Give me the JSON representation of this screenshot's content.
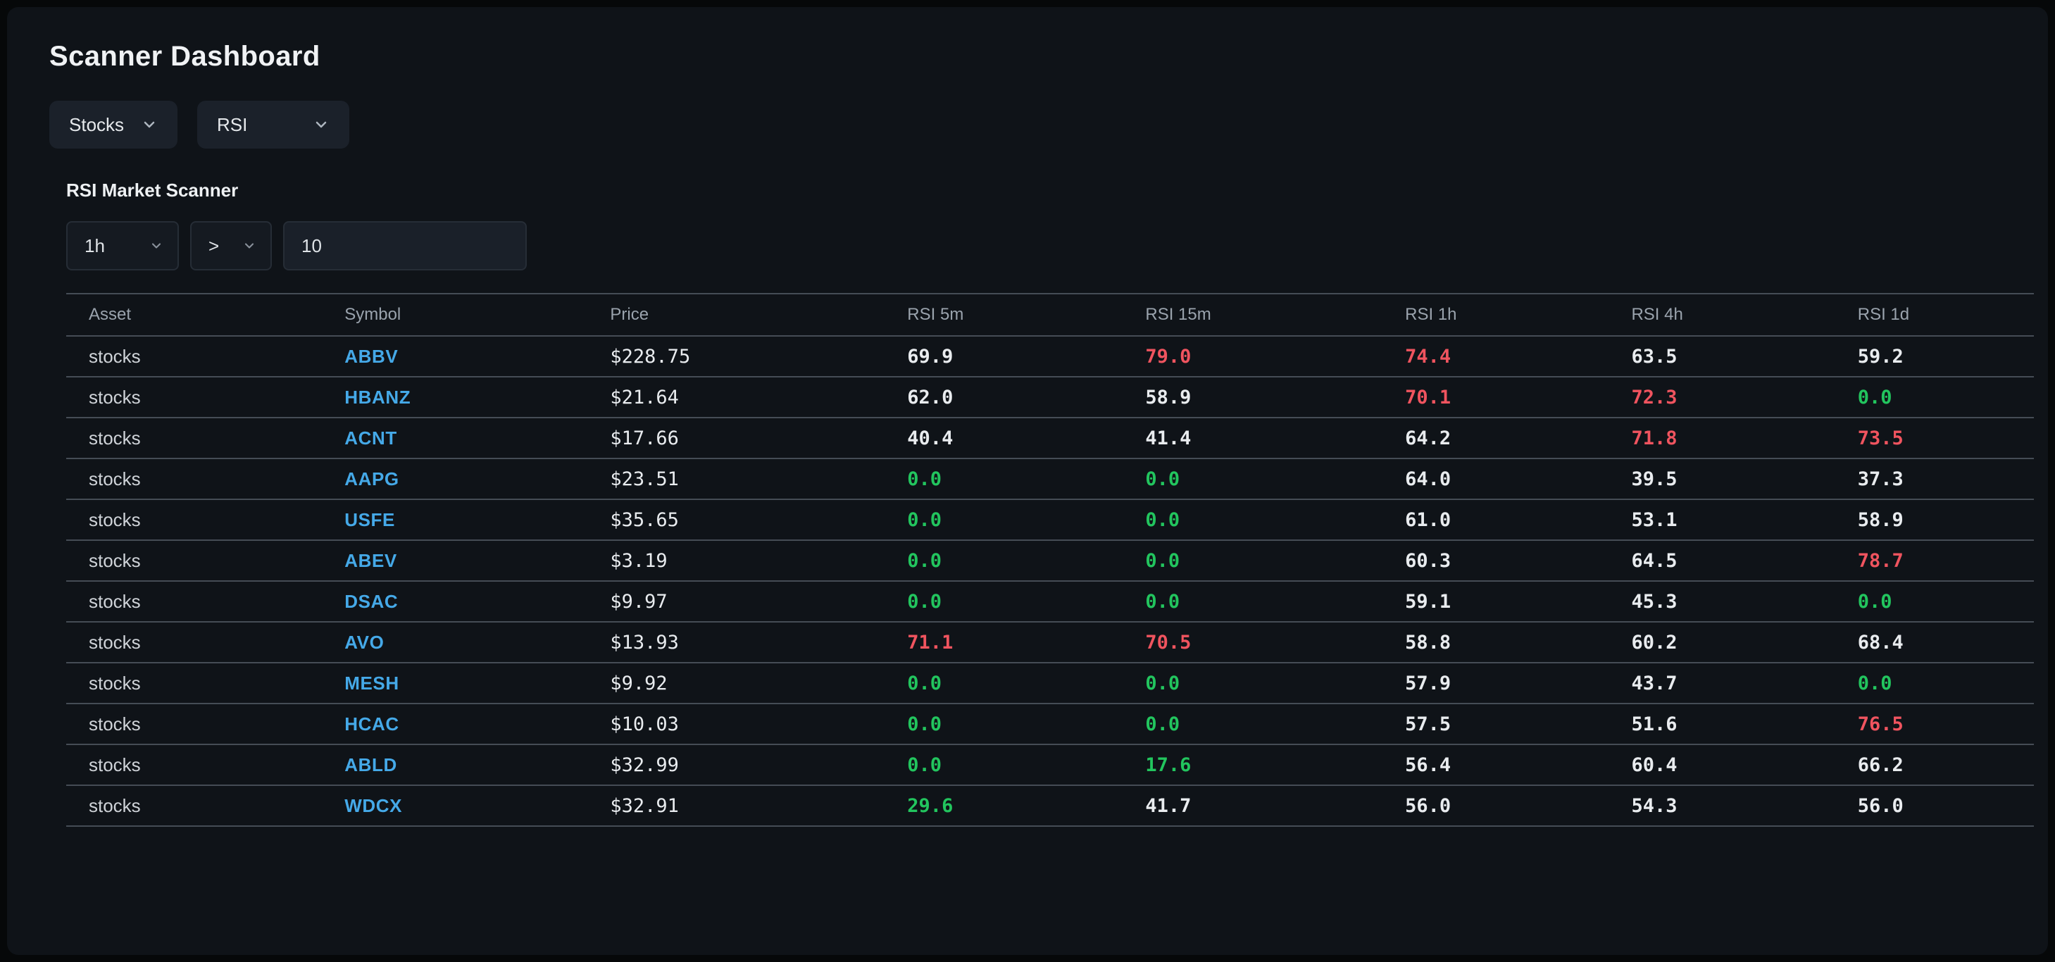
{
  "page": {
    "title": "Scanner Dashboard"
  },
  "toolbar": {
    "asset_class": {
      "value": "Stocks"
    },
    "indicator": {
      "value": "RSI"
    }
  },
  "scanner": {
    "heading": "RSI Market Scanner",
    "timeframe": {
      "value": "1h"
    },
    "operator": {
      "value": ">"
    },
    "threshold": {
      "value": "10"
    }
  },
  "table": {
    "columns": [
      "Asset",
      "Symbol",
      "Price",
      "RSI 5m",
      "RSI 15m",
      "RSI 1h",
      "RSI 4h",
      "RSI 1d"
    ],
    "thresholds": {
      "high": 70,
      "low": 30
    },
    "rows": [
      {
        "asset": "stocks",
        "symbol": "ABBV",
        "price": "$228.75",
        "rsi": [
          "69.9",
          "79.0",
          "74.4",
          "63.5",
          "59.2"
        ]
      },
      {
        "asset": "stocks",
        "symbol": "HBANZ",
        "price": "$21.64",
        "rsi": [
          "62.0",
          "58.9",
          "70.1",
          "72.3",
          "0.0"
        ]
      },
      {
        "asset": "stocks",
        "symbol": "ACNT",
        "price": "$17.66",
        "rsi": [
          "40.4",
          "41.4",
          "64.2",
          "71.8",
          "73.5"
        ]
      },
      {
        "asset": "stocks",
        "symbol": "AAPG",
        "price": "$23.51",
        "rsi": [
          "0.0",
          "0.0",
          "64.0",
          "39.5",
          "37.3"
        ]
      },
      {
        "asset": "stocks",
        "symbol": "USFE",
        "price": "$35.65",
        "rsi": [
          "0.0",
          "0.0",
          "61.0",
          "53.1",
          "58.9"
        ]
      },
      {
        "asset": "stocks",
        "symbol": "ABEV",
        "price": "$3.19",
        "rsi": [
          "0.0",
          "0.0",
          "60.3",
          "64.5",
          "78.7"
        ]
      },
      {
        "asset": "stocks",
        "symbol": "DSAC",
        "price": "$9.97",
        "rsi": [
          "0.0",
          "0.0",
          "59.1",
          "45.3",
          "0.0"
        ]
      },
      {
        "asset": "stocks",
        "symbol": "AVO",
        "price": "$13.93",
        "rsi": [
          "71.1",
          "70.5",
          "58.8",
          "60.2",
          "68.4"
        ]
      },
      {
        "asset": "stocks",
        "symbol": "MESH",
        "price": "$9.92",
        "rsi": [
          "0.0",
          "0.0",
          "57.9",
          "43.7",
          "0.0"
        ]
      },
      {
        "asset": "stocks",
        "symbol": "HCAC",
        "price": "$10.03",
        "rsi": [
          "0.0",
          "0.0",
          "57.5",
          "51.6",
          "76.5"
        ]
      },
      {
        "asset": "stocks",
        "symbol": "ABLD",
        "price": "$32.99",
        "rsi": [
          "0.0",
          "17.6",
          "56.4",
          "60.4",
          "66.2"
        ]
      },
      {
        "asset": "stocks",
        "symbol": "WDCX",
        "price": "$32.91",
        "rsi": [
          "29.6",
          "41.7",
          "56.0",
          "54.3",
          "56.0"
        ]
      }
    ]
  },
  "colors": {
    "symbol": "#45a9e8",
    "rsi_high": "#f0545f",
    "rsi_low": "#22c55e"
  }
}
